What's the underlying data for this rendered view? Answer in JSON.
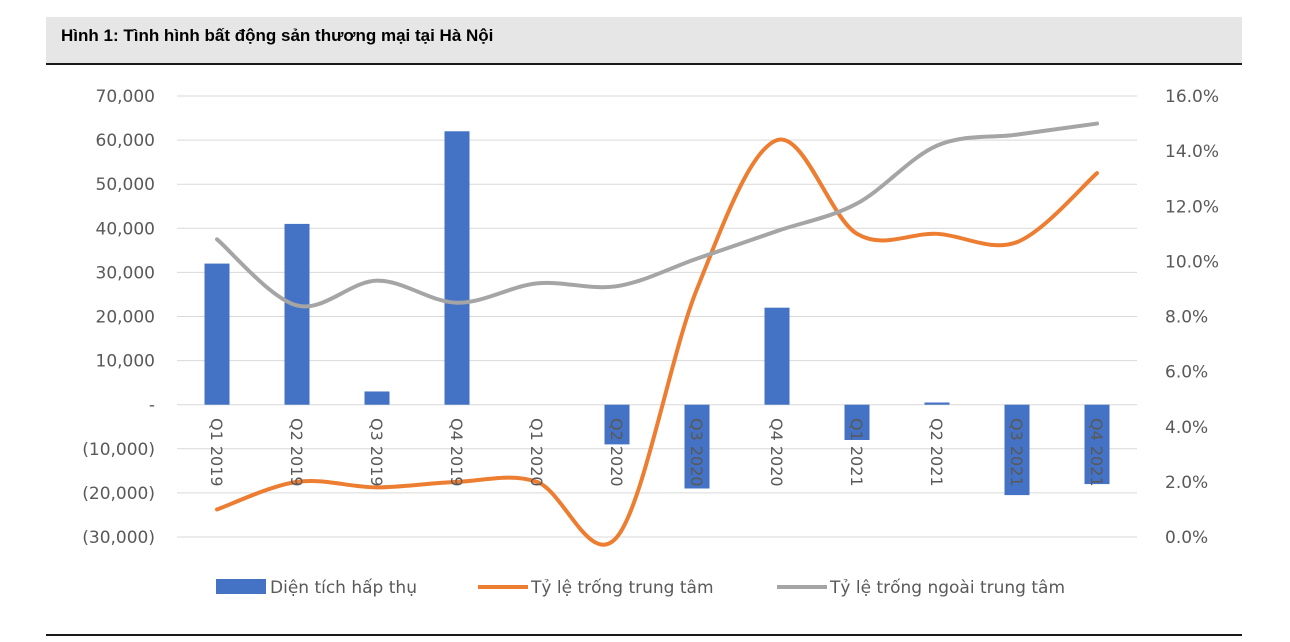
{
  "header": {
    "title": "Hình 1: Tình hình bất động sản thương mại tại Hà Nội"
  },
  "chart_data": {
    "type": "bar",
    "categories": [
      "Q1 2019",
      "Q2 2019",
      "Q3 2019",
      "Q4 2019",
      "Q1 2020",
      "Q2 2020",
      "Q3 2020",
      "Q4 2020",
      "Q1 2021",
      "Q2 2021",
      "Q3 2021",
      "Q4 2021"
    ],
    "left_axis": {
      "ylim": [
        -30000,
        70000
      ],
      "ticks": [
        70000,
        60000,
        50000,
        40000,
        30000,
        20000,
        10000,
        0,
        -10000,
        -20000,
        -30000
      ],
      "tick_labels": [
        "70,000",
        "60,000",
        "50,000",
        "40,000",
        "30,000",
        "20,000",
        "10,000",
        "-",
        "(10,000)",
        "(20,000)",
        "(30,000)"
      ]
    },
    "right_axis": {
      "ylim": [
        0,
        16
      ],
      "ticks": [
        16,
        14,
        12,
        10,
        8,
        6,
        4,
        2,
        0
      ],
      "tick_labels": [
        "16.0%",
        "14.0%",
        "12.0%",
        "10.0%",
        "8.0%",
        "6.0%",
        "4.0%",
        "2.0%",
        "0.0%"
      ]
    },
    "series": [
      {
        "name": "Diện tích hấp thụ",
        "type": "bar",
        "axis": "left",
        "color": "#4472c4",
        "values": [
          32000,
          41000,
          3000,
          62000,
          0,
          -9000,
          -19000,
          22000,
          -8000,
          500,
          -20500,
          -18000
        ]
      },
      {
        "name": "Tỷ lệ trống trung tâm",
        "type": "line",
        "axis": "right",
        "color": "#ed7d31",
        "values": [
          1.0,
          2.0,
          1.8,
          2.0,
          2.0,
          0.0,
          9.0,
          14.4,
          11.0,
          11.0,
          10.7,
          13.2
        ]
      },
      {
        "name": "Tỷ lệ trống ngoài trung tâm",
        "type": "line",
        "axis": "right",
        "color": "#a5a5a5",
        "values": [
          10.8,
          8.4,
          9.3,
          8.5,
          9.2,
          9.1,
          10.1,
          11.1,
          12.1,
          14.2,
          14.6,
          15.0
        ]
      }
    ],
    "legend": "bottom",
    "grid": true
  }
}
